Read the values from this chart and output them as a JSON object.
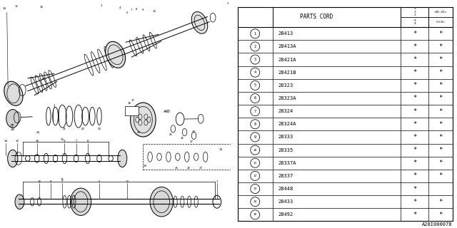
{
  "bg_color": "#ffffff",
  "table": {
    "header_col1": "PARTS CORD",
    "col2_top": "9\n3\n2",
    "col2_top_right": "<U0,U1>",
    "col2_bot": "9\n4",
    "col2_bot_right": "U<C0>",
    "rows": [
      {
        "num": "1",
        "part": "28413",
        "c2": "*",
        "c3": "*"
      },
      {
        "num": "2",
        "part": "28413A",
        "c2": "*",
        "c3": "*"
      },
      {
        "num": "3",
        "part": "28421A",
        "c2": "*",
        "c3": "*"
      },
      {
        "num": "4",
        "part": "28421B",
        "c2": "*",
        "c3": "*"
      },
      {
        "num": "5",
        "part": "28323",
        "c2": "*",
        "c3": "*"
      },
      {
        "num": "6",
        "part": "28323A",
        "c2": "*",
        "c3": "*"
      },
      {
        "num": "7",
        "part": "28324",
        "c2": "*",
        "c3": "*"
      },
      {
        "num": "8",
        "part": "28324A",
        "c2": "*",
        "c3": "*"
      },
      {
        "num": "9",
        "part": "28333",
        "c2": "*",
        "c3": "*"
      },
      {
        "num": "10",
        "part": "28335",
        "c2": "*",
        "c3": "*"
      },
      {
        "num": "11",
        "part": "28337A",
        "c2": "*",
        "c3": "*"
      },
      {
        "num": "12",
        "part": "28337",
        "c2": "*",
        "c3": "*"
      },
      {
        "num": "13",
        "part": "28448",
        "c2": "*",
        "c3": ""
      },
      {
        "num": "14",
        "part": "28433",
        "c2": "*",
        "c3": "*"
      },
      {
        "num": "15",
        "part": "28492",
        "c2": "*",
        "c3": "*"
      }
    ]
  },
  "footer": "A28I000078"
}
